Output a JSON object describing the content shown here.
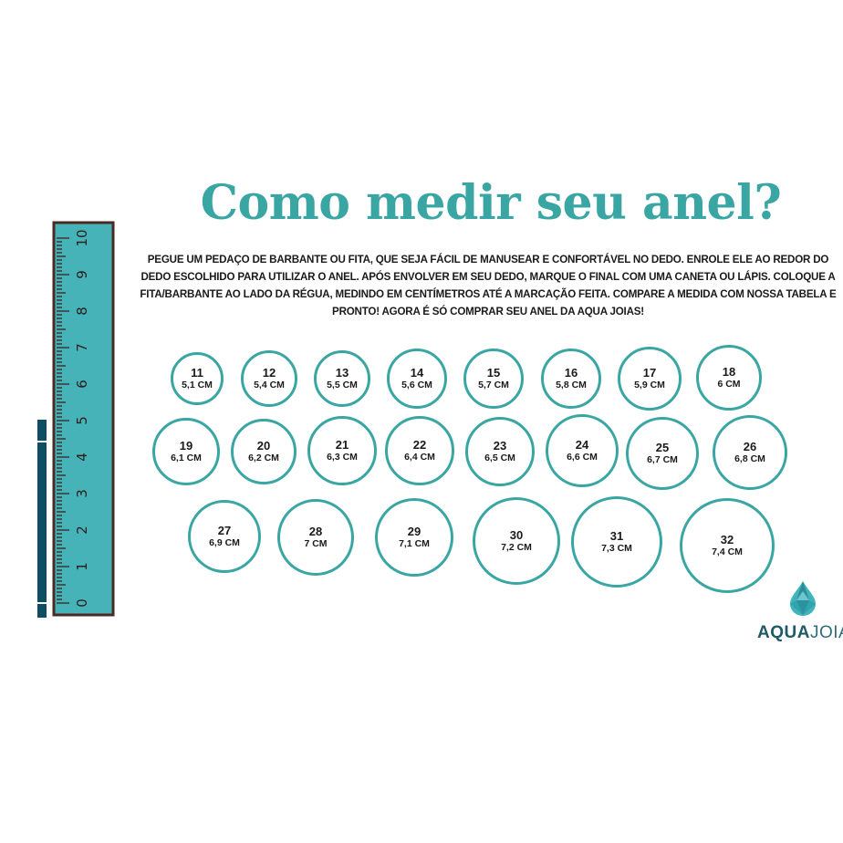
{
  "title": "Como medir seu anel?",
  "instructions": "PEGUE UM PEDAÇO DE BARBANTE OU FITA, QUE SEJA FÁCIL DE MANUSEAR E CONFORTÁVEL NO DEDO. ENROLE ELE AO REDOR DO DEDO ESCOLHIDO PARA UTILIZAR O ANEL. APÓS ENVOLVER EM SEU DEDO, MARQUE O FINAL COM UMA CANETA OU LÁPIS. COLOQUE A FITA/BARBANTE AO LADO DA RÉGUA, MEDINDO EM CENTÍMETROS ATÉ A MARCAÇÃO FEITA. COMPARE A MEDIDA COM NOSSA TABELA E PRONTO! AGORA É SÓ COMPRAR SEU ANEL DA AQUA JOIAS!",
  "colors": {
    "accent": "#3aa6a3",
    "ruler": "#45b3b8",
    "ruler_border": "#4a2a22",
    "strip": "#0e4d63"
  },
  "ruler": {
    "labels": [
      "0",
      "1",
      "2",
      "3",
      "4",
      "5",
      "6",
      "7",
      "8",
      "9",
      "10"
    ]
  },
  "sizes": [
    {
      "size": "11",
      "cm": "5,1 CM"
    },
    {
      "size": "12",
      "cm": "5,4 CM"
    },
    {
      "size": "13",
      "cm": "5,5 CM"
    },
    {
      "size": "14",
      "cm": "5,6 CM"
    },
    {
      "size": "15",
      "cm": "5,7 CM"
    },
    {
      "size": "16",
      "cm": "5,8 CM"
    },
    {
      "size": "17",
      "cm": "5,9 CM"
    },
    {
      "size": "18",
      "cm": "6 CM"
    },
    {
      "size": "19",
      "cm": "6,1 CM"
    },
    {
      "size": "20",
      "cm": "6,2 CM"
    },
    {
      "size": "21",
      "cm": "6,3 CM"
    },
    {
      "size": "22",
      "cm": "6,4 CM"
    },
    {
      "size": "23",
      "cm": "6,5 CM"
    },
    {
      "size": "24",
      "cm": "6,6 CM"
    },
    {
      "size": "25",
      "cm": "6,7 CM"
    },
    {
      "size": "26",
      "cm": "6,8 CM"
    },
    {
      "size": "27",
      "cm": "6,9 CM"
    },
    {
      "size": "28",
      "cm": "7 CM"
    },
    {
      "size": "29",
      "cm": "7,1 CM"
    },
    {
      "size": "30",
      "cm": "7,2 CM"
    },
    {
      "size": "31",
      "cm": "7,3 CM"
    },
    {
      "size": "32",
      "cm": "7,4 CM"
    }
  ],
  "logo": {
    "text_bold": "AQUA",
    "text_light": "JOIAS",
    "icon": "teardrop-gem-icon"
  }
}
